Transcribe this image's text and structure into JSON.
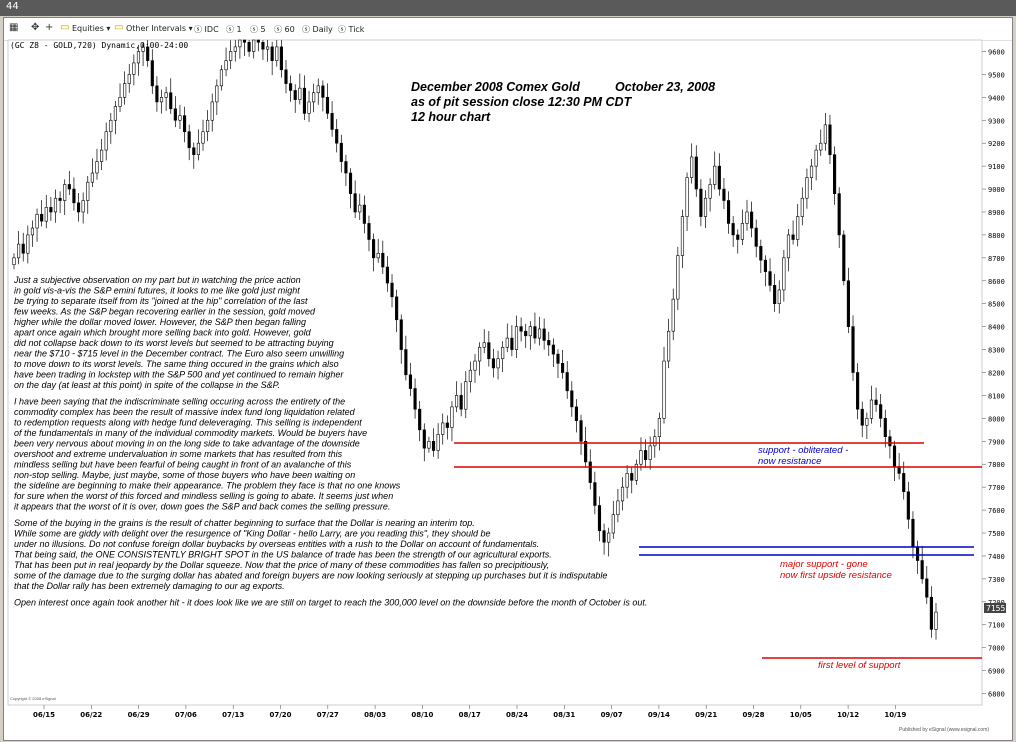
{
  "window": {
    "title_tag": "44"
  },
  "toolbar": {
    "equities": "Equities",
    "other_intervals": "Other Intervals",
    "intervals": [
      "IDC",
      "1",
      "5",
      "60",
      "Daily",
      "Tick"
    ]
  },
  "symbol_line": "(GC Z8 - GOLD,720) Dynamic,0:00-24:00",
  "header": {
    "line1a": "December 2008 Comex Gold",
    "line1b": "October 23, 2008",
    "line2": "as of pit session close  12:30 PM CDT",
    "line3": "12 hour chart"
  },
  "commentary": [
    "Just a subjective observation on my part but in watching the price action",
    "in gold vis-a-vis the S&P emini futures, it looks to me like gold just might",
    "be trying to separate itself from its \"joined at the hip\" correlation of the last",
    "few weeks. As the S&P began recovering earlier in the session, gold moved",
    "higher while the dollar moved lower. However, the S&P then began falling",
    "apart once again which brought more selling back into gold. However, gold",
    "did not collapse back down to its worst levels but seemed to be attracting buying",
    "near the $710 - $715 level in the December contract.  The Euro also seem unwilling",
    "to move down to its worst levels. The same thing occured in the grains which also",
    "have been trading in lockstep with the S&P 500 and yet continued to remain higher",
    "on the day (at least at this point) in spite of the collapse in the S&P.",
    "",
    "I have been saying that the indiscriminate selling occuring across the entirety of the",
    "commodity complex has been the result of massive index fund long liquidation related",
    "to redemption requests along with hedge fund deleveraging. This selling is independent",
    "of the fundamentals in many of the individual commodity markets. Would be buyers have",
    "been very nervous about moving in on the long side to take advantage of the downside",
    "overshoot and extreme undervaluation in some markets that has resulted from this",
    "mindless selling but have been fearful of being caught in front of an avalanche of this",
    "non-stop selling. Maybe, just maybe, some of those buyers who have been waiting on",
    "the sideline are beginning to make their appearance. The problem they face is that no one knows",
    "for sure when the worst of this forced and mindless selling is going to abate. It seems just when",
    "it appears that the worst of it is over, down goes the S&P and back comes the selling pressure.",
    "",
    "Some of the buying in the grains is the result of chatter beginning to surface that the Dollar is nearing an interim top.",
    "While some are giddy with delight over the resurgence of \"King Dollar - hello Larry, are you reading this\", they should be",
    "under no illusions. Do not confuse foreign dollar buybacks by overseas entities with a rush to the Dollar on account of fundamentals.",
    "That being said, the ONE CONSISTENTLY BRIGHT SPOT in the US balance of trade has been the strength of our agricultural exports.",
    "That has been put in real jeopardy by the Dollar squeeze. Now that the price of many of these commodities has fallen so precipitiously,",
    "some of the damage due to the surging dollar has abated and foreign buyers are now looking seriously at stepping up purchases but it is indisputable",
    "that the Dollar rally has been extremely damaging to our ag exports.",
    "",
    "Open interest once again took another hit - it does look like we are still on target to reach the 300,000 level on the downside before the month of October is out."
  ],
  "annotations": {
    "support_obliterated": "support - obliterated -",
    "now_resistance": "now resistance",
    "major_support": "major support - gone",
    "now_first_upside": "now first upside resistance",
    "first_level_support": "first level of support"
  },
  "colors": {
    "red": "#dd0000",
    "blue": "#0000cc",
    "candle": "#000000"
  },
  "footer": {
    "left": "Copyright © 2008 eSignal",
    "right": "Published by eSignal (www.esignal.com)"
  },
  "chart_data": {
    "type": "candlestick",
    "price_label": "7155",
    "x_ticks": [
      "06/15",
      "06/22",
      "06/29",
      "07/06",
      "07/13",
      "07/20",
      "07/27",
      "08/03",
      "08/10",
      "08/17",
      "08/24",
      "08/31",
      "09/07",
      "09/14",
      "09/21",
      "09/28",
      "10/05",
      "10/12",
      "10/19"
    ],
    "y_ticks": [
      6800,
      6900,
      7000,
      7100,
      7200,
      7300,
      7400,
      7500,
      7600,
      7700,
      7800,
      7900,
      8000,
      8100,
      8200,
      8300,
      8400,
      8500,
      8600,
      8700,
      8800,
      8900,
      9000,
      9100,
      9200,
      9300,
      9400,
      9500,
      9600
    ],
    "ylim": [
      6750,
      9650
    ],
    "closes": [
      8700,
      8760,
      8720,
      8800,
      8830,
      8890,
      8860,
      8920,
      8900,
      8960,
      8950,
      9020,
      9000,
      8940,
      8900,
      8950,
      9030,
      9070,
      9120,
      9170,
      9250,
      9300,
      9360,
      9400,
      9460,
      9500,
      9550,
      9600,
      9620,
      9560,
      9450,
      9380,
      9400,
      9420,
      9350,
      9300,
      9320,
      9250,
      9180,
      9150,
      9200,
      9250,
      9300,
      9380,
      9450,
      9520,
      9560,
      9600,
      9620,
      9650,
      9640,
      9600,
      9650,
      9640,
      9610,
      9620,
      9560,
      9620,
      9520,
      9460,
      9430,
      9390,
      9440,
      9330,
      9380,
      9420,
      9450,
      9400,
      9330,
      9260,
      9200,
      9120,
      9070,
      8980,
      8900,
      8930,
      8850,
      8780,
      8700,
      8720,
      8660,
      8590,
      8530,
      8430,
      8300,
      8190,
      8130,
      8040,
      7950,
      7870,
      7900,
      7860,
      7930,
      7980,
      7960,
      8050,
      8100,
      8040,
      8160,
      8210,
      8250,
      8310,
      8330,
      8260,
      8220,
      8260,
      8310,
      8350,
      8300,
      8400,
      8380,
      8360,
      8400,
      8350,
      8390,
      8340,
      8320,
      8280,
      8240,
      8200,
      8120,
      8050,
      7990,
      7900,
      7810,
      7720,
      7620,
      7510,
      7460,
      7500,
      7580,
      7640,
      7700,
      7760,
      7730,
      7800,
      7860,
      7820,
      7880,
      7920,
      8000,
      8250,
      8380,
      8520,
      8710,
      8880,
      9050,
      9140,
      9000,
      8880,
      8960,
      9020,
      9100,
      9000,
      8950,
      8850,
      8800,
      8780,
      8850,
      8900,
      8830,
      8750,
      8690,
      8640,
      8580,
      8500,
      8560,
      8700,
      8800,
      8780,
      8880,
      8960,
      9050,
      9100,
      9170,
      9200,
      9280,
      9150,
      8980,
      8800,
      8600,
      8400,
      8200,
      8040,
      7970,
      8000,
      8080,
      8060,
      8000,
      7920,
      7880,
      7790,
      7760,
      7680,
      7560,
      7440,
      7380,
      7300,
      7220,
      7080,
      7155
    ]
  }
}
